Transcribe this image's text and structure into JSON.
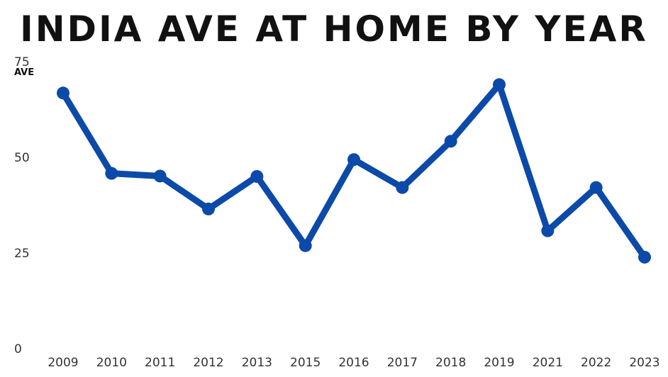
{
  "chart_data": {
    "type": "line",
    "title": "India Ave at Home by Year",
    "ylabel": "AVE",
    "xlabel": "",
    "ylim": [
      0,
      75
    ],
    "yticks": [
      0,
      25,
      50,
      75
    ],
    "grid": false,
    "categories": [
      "2009",
      "2010",
      "2011",
      "2012",
      "2013",
      "2015",
      "2016",
      "2017",
      "2018",
      "2019",
      "2021",
      "2022",
      "2023"
    ],
    "series": [
      {
        "values": [
          66.8,
          45.8,
          45.1,
          36.5,
          45.0,
          26.9,
          49.4,
          42.1,
          54.2,
          69.0,
          30.8,
          42.1,
          23.9
        ]
      }
    ],
    "line_color": "#0b4aa8"
  }
}
